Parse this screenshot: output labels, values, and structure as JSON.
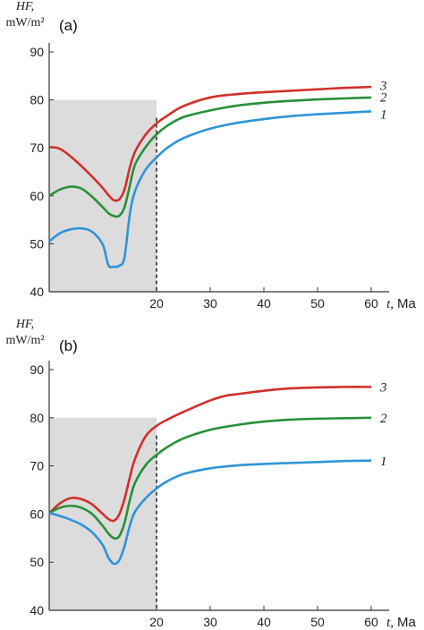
{
  "chart_data": [
    {
      "type": "line",
      "panel_label": "(a)",
      "ylabel_symbol": "HF,",
      "ylabel_unit": "mW/m²",
      "xlabel_symbol": "t,",
      "xlabel_unit": "Ma",
      "xlim": [
        0,
        60
      ],
      "ylim": [
        40,
        90
      ],
      "xticks": [
        "20",
        "30",
        "40",
        "50",
        "60"
      ],
      "yticks": [
        "40",
        "50",
        "60",
        "70",
        "80",
        "90"
      ],
      "shaded_region": {
        "x": [
          0,
          20
        ],
        "y": [
          40,
          80
        ]
      },
      "dashed_line_x": 20,
      "series": [
        {
          "name": "3",
          "color": "#d0302a",
          "x": [
            0,
            2,
            4,
            6,
            8,
            10,
            11,
            12,
            13,
            14,
            15,
            16,
            18,
            20,
            22,
            25,
            30,
            35,
            40,
            45,
            50,
            55,
            60
          ],
          "y": [
            70.2,
            69.8,
            68.2,
            66.2,
            64.0,
            61.6,
            60.2,
            59.1,
            59.2,
            61.2,
            65.8,
            69.2,
            72.8,
            75.1,
            76.7,
            78.7,
            80.5,
            81.2,
            81.6,
            81.9,
            82.2,
            82.5,
            82.7
          ]
        },
        {
          "name": "2",
          "color": "#27903a",
          "x": [
            0,
            2,
            4,
            6,
            8,
            10,
            11,
            12,
            13,
            14,
            15,
            16,
            18,
            20,
            22,
            25,
            30,
            35,
            40,
            45,
            50,
            55,
            60
          ],
          "y": [
            60.0,
            61.3,
            61.9,
            61.5,
            59.8,
            57.6,
            56.4,
            55.8,
            55.8,
            57.5,
            62.0,
            66.5,
            70.2,
            72.8,
            74.6,
            76.4,
            77.8,
            78.8,
            79.4,
            79.8,
            80.1,
            80.3,
            80.5
          ]
        },
        {
          "name": "1",
          "color": "#2e94d6",
          "x": [
            0,
            2,
            4,
            6,
            8,
            10,
            11,
            12,
            13,
            14,
            15,
            16,
            18,
            20,
            22,
            25,
            30,
            35,
            40,
            45,
            50,
            55,
            60
          ],
          "y": [
            50.5,
            52.2,
            53.0,
            53.2,
            52.5,
            49.8,
            45.6,
            45.2,
            45.4,
            47.0,
            56.0,
            61.0,
            65.5,
            68.0,
            70.0,
            72.0,
            74.0,
            75.2,
            76.0,
            76.6,
            77.0,
            77.3,
            77.6
          ]
        }
      ],
      "series_labels_y": [
        83.0,
        80.6,
        77.0
      ]
    },
    {
      "type": "line",
      "panel_label": "(b)",
      "ylabel_symbol": "HF,",
      "ylabel_unit": "mW/m²",
      "xlabel_symbol": "t,",
      "xlabel_unit": "Ma",
      "xlim": [
        0,
        60
      ],
      "ylim": [
        40,
        90
      ],
      "xticks": [
        "20",
        "30",
        "40",
        "50",
        "60"
      ],
      "yticks": [
        "40",
        "50",
        "60",
        "70",
        "80",
        "90"
      ],
      "shaded_region": {
        "x": [
          0,
          20
        ],
        "y": [
          40,
          80
        ]
      },
      "dashed_line_x": 20,
      "series": [
        {
          "name": "3",
          "color": "#d0302a",
          "x": [
            0,
            2,
            4,
            6,
            8,
            10,
            11,
            12,
            13,
            14,
            15,
            16,
            18,
            20,
            22,
            25,
            30,
            33,
            35,
            40,
            45,
            50,
            55,
            60
          ],
          "y": [
            60.2,
            62.2,
            63.3,
            63.1,
            62.0,
            60.0,
            59.0,
            58.6,
            59.8,
            63.0,
            67.5,
            71.5,
            76.2,
            78.3,
            79.6,
            81.2,
            83.6,
            84.6,
            84.9,
            85.6,
            86.1,
            86.3,
            86.4,
            86.4
          ]
        },
        {
          "name": "2",
          "color": "#27903a",
          "x": [
            0,
            2,
            4,
            6,
            8,
            10,
            11,
            12,
            13,
            14,
            15,
            16,
            18,
            20,
            22,
            25,
            30,
            35,
            40,
            45,
            50,
            55,
            60
          ],
          "y": [
            60.2,
            61.3,
            61.7,
            61.3,
            60.0,
            57.5,
            56.0,
            55.0,
            55.3,
            58.0,
            62.8,
            66.5,
            70.2,
            72.3,
            73.9,
            75.7,
            77.5,
            78.5,
            79.2,
            79.6,
            79.8,
            79.9,
            80.0
          ]
        },
        {
          "name": "1",
          "color": "#2e94d6",
          "x": [
            0,
            2,
            4,
            6,
            8,
            10,
            11,
            12,
            13,
            14,
            15,
            16,
            18,
            20,
            22,
            25,
            30,
            35,
            40,
            45,
            50,
            55,
            60
          ],
          "y": [
            60.2,
            59.6,
            58.8,
            57.8,
            56.2,
            53.5,
            51.0,
            49.7,
            50.3,
            53.2,
            57.5,
            60.5,
            63.3,
            65.3,
            66.8,
            68.3,
            69.5,
            70.1,
            70.4,
            70.6,
            70.8,
            71.0,
            71.1
          ]
        }
      ],
      "series_labels_y": [
        86.4,
        80.0,
        71.0
      ]
    }
  ]
}
